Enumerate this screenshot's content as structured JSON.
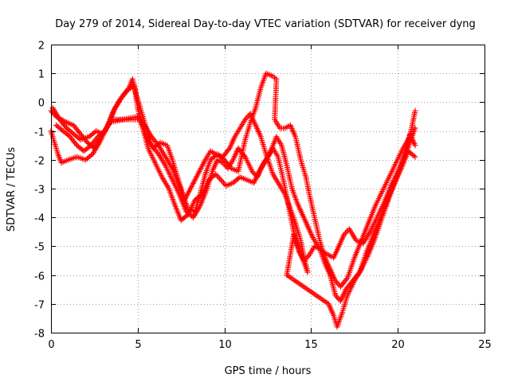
{
  "chart_data": {
    "type": "scatter",
    "title": "Day 279 of 2014, Sidereal Day-to-day VTEC variation (SDTVAR) for receiver dyng",
    "xlabel": "GPS time / hours",
    "ylabel": "SDTVAR / TECUs",
    "xlim": [
      0,
      25
    ],
    "ylim": [
      -8,
      2
    ],
    "x_ticks": [
      "0",
      "5",
      "10",
      "15",
      "20",
      "25"
    ],
    "y_ticks": [
      "2",
      "1",
      "0",
      "-1",
      "-2",
      "-3",
      "-4",
      "-5",
      "-6",
      "-7",
      "-8"
    ],
    "grid": true,
    "legend": "none",
    "marker": "+",
    "color": "#ff0000",
    "series": [
      {
        "points": [
          [
            0.0,
            -0.3
          ],
          [
            0.3,
            -0.5
          ],
          [
            0.6,
            -0.6
          ],
          [
            0.9,
            -0.7
          ],
          [
            1.3,
            -0.8
          ],
          [
            1.7,
            -1.1
          ],
          [
            2.1,
            -1.4
          ],
          [
            2.5,
            -1.6
          ],
          [
            2.9,
            -1.2
          ],
          [
            3.3,
            -0.8
          ],
          [
            3.7,
            -0.2
          ],
          [
            4.1,
            0.2
          ],
          [
            4.5,
            0.5
          ],
          [
            4.7,
            0.8
          ],
          [
            4.9,
            0.3
          ],
          [
            5.2,
            -0.3
          ],
          [
            5.5,
            -0.9
          ],
          [
            5.8,
            -1.5
          ],
          [
            6.2,
            -1.8
          ],
          [
            6.6,
            -2.2
          ],
          [
            7.0,
            -2.7
          ],
          [
            7.4,
            -3.2
          ],
          [
            7.8,
            -3.8
          ],
          [
            8.2,
            -4.0
          ],
          [
            8.6,
            -3.6
          ],
          [
            9.0,
            -3.0
          ],
          [
            9.3,
            -2.4
          ],
          [
            9.6,
            -2.0
          ],
          [
            9.9,
            -2.1
          ],
          [
            10.2,
            -2.3
          ],
          [
            10.5,
            -2.0
          ],
          [
            10.8,
            -1.6
          ],
          [
            11.2,
            -1.9
          ],
          [
            11.6,
            -2.4
          ],
          [
            11.9,
            -2.6
          ],
          [
            12.2,
            -2.2
          ],
          [
            12.6,
            -1.8
          ],
          [
            13.0,
            -1.2
          ],
          [
            13.3,
            -1.5
          ],
          [
            13.6,
            -2.2
          ],
          [
            13.9,
            -3.0
          ],
          [
            14.2,
            -3.5
          ],
          [
            14.5,
            -3.9
          ],
          [
            14.8,
            -4.3
          ],
          [
            15.1,
            -4.7
          ],
          [
            15.4,
            -5.0
          ],
          [
            15.7,
            -5.2
          ],
          [
            16.0,
            -5.3
          ],
          [
            16.3,
            -5.4
          ],
          [
            16.6,
            -5.0
          ],
          [
            16.9,
            -4.6
          ],
          [
            17.2,
            -4.4
          ],
          [
            17.6,
            -4.8
          ],
          [
            18.0,
            -4.9
          ],
          [
            18.4,
            -4.5
          ],
          [
            18.8,
            -4.0
          ],
          [
            19.2,
            -3.5
          ],
          [
            19.6,
            -2.9
          ],
          [
            20.0,
            -2.4
          ],
          [
            20.4,
            -1.9
          ],
          [
            20.7,
            -1.4
          ],
          [
            21.0,
            -0.9
          ]
        ]
      },
      {
        "points": [
          [
            0.0,
            -1.0
          ],
          [
            0.2,
            -1.4
          ],
          [
            0.4,
            -1.8
          ],
          [
            0.6,
            -2.1
          ],
          [
            1.0,
            -2.0
          ],
          [
            1.5,
            -1.9
          ],
          [
            2.0,
            -2.0
          ],
          [
            2.4,
            -1.8
          ],
          [
            2.8,
            -1.4
          ],
          [
            3.2,
            -0.9
          ],
          [
            3.6,
            -0.3
          ],
          [
            4.0,
            0.1
          ],
          [
            4.4,
            0.4
          ],
          [
            4.8,
            0.6
          ],
          [
            5.0,
            -0.2
          ],
          [
            5.3,
            -0.9
          ],
          [
            5.6,
            -1.6
          ],
          [
            6.0,
            -2.1
          ],
          [
            6.4,
            -2.6
          ],
          [
            6.8,
            -3.0
          ],
          [
            7.1,
            -3.5
          ],
          [
            7.5,
            -4.1
          ],
          [
            7.9,
            -3.9
          ],
          [
            8.3,
            -3.4
          ],
          [
            8.7,
            -3.2
          ],
          [
            9.1,
            -2.7
          ],
          [
            9.5,
            -2.5
          ],
          [
            9.8,
            -2.7
          ],
          [
            10.1,
            -2.9
          ],
          [
            10.5,
            -2.8
          ],
          [
            10.9,
            -2.6
          ],
          [
            11.3,
            -2.7
          ],
          [
            11.7,
            -2.8
          ],
          [
            12.0,
            -2.4
          ],
          [
            12.4,
            -2.0
          ],
          [
            12.8,
            -1.6
          ],
          [
            13.1,
            -1.9
          ],
          [
            13.4,
            -2.7
          ],
          [
            13.7,
            -3.6
          ],
          [
            14.0,
            -4.5
          ],
          [
            14.3,
            -5.2
          ],
          [
            14.6,
            -5.5
          ],
          [
            14.9,
            -5.3
          ],
          [
            15.2,
            -5.0
          ],
          [
            15.5,
            -5.1
          ],
          [
            15.8,
            -5.6
          ],
          [
            16.1,
            -6.0
          ],
          [
            16.4,
            -6.7
          ],
          [
            16.7,
            -6.9
          ],
          [
            17.0,
            -6.5
          ],
          [
            17.4,
            -6.2
          ],
          [
            17.8,
            -5.9
          ],
          [
            18.2,
            -5.2
          ],
          [
            18.6,
            -4.6
          ],
          [
            19.0,
            -4.0
          ],
          [
            19.4,
            -3.4
          ],
          [
            19.8,
            -2.8
          ],
          [
            20.2,
            -2.3
          ],
          [
            20.6,
            -1.7
          ],
          [
            21.0,
            -1.9
          ]
        ]
      },
      {
        "points": [
          [
            0.3,
            -0.8
          ],
          [
            0.7,
            -1.0
          ],
          [
            1.1,
            -1.2
          ],
          [
            1.5,
            -1.5
          ],
          [
            1.9,
            -1.7
          ],
          [
            2.3,
            -1.5
          ],
          [
            2.7,
            -1.2
          ],
          [
            3.1,
            -1.0
          ],
          [
            3.5,
            -0.6
          ],
          [
            3.9,
            -0.6
          ],
          [
            5.1,
            -0.6
          ],
          [
            5.5,
            -1.2
          ],
          [
            5.9,
            -1.6
          ],
          [
            6.3,
            -1.4
          ],
          [
            6.7,
            -1.5
          ],
          [
            7.0,
            -2.0
          ],
          [
            7.3,
            -2.6
          ],
          [
            7.6,
            -3.2
          ],
          [
            7.9,
            -3.7
          ],
          [
            8.3,
            -3.8
          ],
          [
            8.6,
            -3.2
          ],
          [
            8.9,
            -2.5
          ],
          [
            9.2,
            -2.0
          ],
          [
            9.6,
            -1.8
          ],
          [
            10.0,
            -2.0
          ],
          [
            10.4,
            -2.3
          ],
          [
            10.8,
            -2.4
          ],
          [
            11.2,
            -1.3
          ],
          [
            11.5,
            -0.7
          ],
          [
            11.8,
            -0.2
          ],
          [
            12.1,
            0.5
          ],
          [
            12.4,
            1.0
          ],
          [
            12.8,
            0.9
          ],
          [
            13.0,
            0.8
          ],
          [
            12.9,
            -0.6
          ],
          [
            13.2,
            -0.9
          ],
          [
            13.5,
            -0.9
          ],
          [
            13.8,
            -0.8
          ],
          [
            14.1,
            -1.2
          ],
          [
            14.4,
            -2.0
          ],
          [
            14.7,
            -2.6
          ],
          [
            14.9,
            -3.2
          ],
          [
            15.2,
            -4.0
          ],
          [
            15.5,
            -4.8
          ],
          [
            15.8,
            -5.4
          ],
          [
            16.1,
            -5.8
          ],
          [
            16.4,
            -6.2
          ],
          [
            16.7,
            -6.4
          ],
          [
            17.1,
            -6.1
          ],
          [
            17.5,
            -5.4
          ],
          [
            17.9,
            -4.8
          ],
          [
            18.3,
            -4.2
          ],
          [
            18.7,
            -3.6
          ],
          [
            19.1,
            -3.1
          ],
          [
            19.5,
            -2.6
          ],
          [
            19.9,
            -2.1
          ],
          [
            20.3,
            -1.6
          ],
          [
            20.7,
            -1.2
          ],
          [
            21.0,
            -0.3
          ]
        ]
      },
      {
        "points": [
          [
            0.1,
            -0.2
          ],
          [
            0.5,
            -0.6
          ],
          [
            0.9,
            -0.9
          ],
          [
            1.3,
            -1.1
          ],
          [
            1.7,
            -1.3
          ],
          [
            2.2,
            -1.2
          ],
          [
            2.6,
            -1.0
          ],
          [
            3.0,
            -1.1
          ],
          [
            3.4,
            -0.7
          ],
          [
            5.0,
            -0.5
          ],
          [
            5.4,
            -0.8
          ],
          [
            5.8,
            -1.2
          ],
          [
            6.2,
            -1.5
          ],
          [
            6.6,
            -1.9
          ],
          [
            7.0,
            -2.3
          ],
          [
            7.4,
            -2.9
          ],
          [
            7.7,
            -3.4
          ],
          [
            8.9,
            -2.0
          ],
          [
            9.2,
            -1.7
          ],
          [
            9.5,
            -1.8
          ],
          [
            9.9,
            -1.9
          ],
          [
            10.3,
            -1.6
          ],
          [
            10.6,
            -1.2
          ],
          [
            10.9,
            -0.9
          ],
          [
            11.2,
            -0.6
          ],
          [
            11.5,
            -0.4
          ],
          [
            11.8,
            -0.8
          ],
          [
            12.1,
            -1.2
          ],
          [
            12.4,
            -1.8
          ],
          [
            12.8,
            -2.5
          ],
          [
            13.2,
            -2.9
          ],
          [
            13.5,
            -3.2
          ],
          [
            13.8,
            -3.7
          ],
          [
            14.1,
            -4.2
          ],
          [
            14.4,
            -4.8
          ],
          [
            14.6,
            -5.4
          ],
          [
            14.8,
            -5.9
          ],
          [
            14.0,
            -4.6
          ],
          [
            13.8,
            -5.3
          ],
          [
            13.6,
            -6.0
          ],
          [
            16.0,
            -7.0
          ],
          [
            16.3,
            -7.4
          ],
          [
            16.5,
            -7.8
          ],
          [
            16.8,
            -7.3
          ],
          [
            17.1,
            -6.7
          ],
          [
            17.5,
            -6.2
          ],
          [
            17.9,
            -5.8
          ],
          [
            18.3,
            -5.3
          ],
          [
            18.7,
            -4.7
          ],
          [
            19.1,
            -4.0
          ],
          [
            19.5,
            -3.3
          ],
          [
            19.9,
            -2.7
          ],
          [
            20.3,
            -2.0
          ],
          [
            20.7,
            -1.1
          ],
          [
            21.0,
            -1.5
          ]
        ]
      }
    ]
  }
}
